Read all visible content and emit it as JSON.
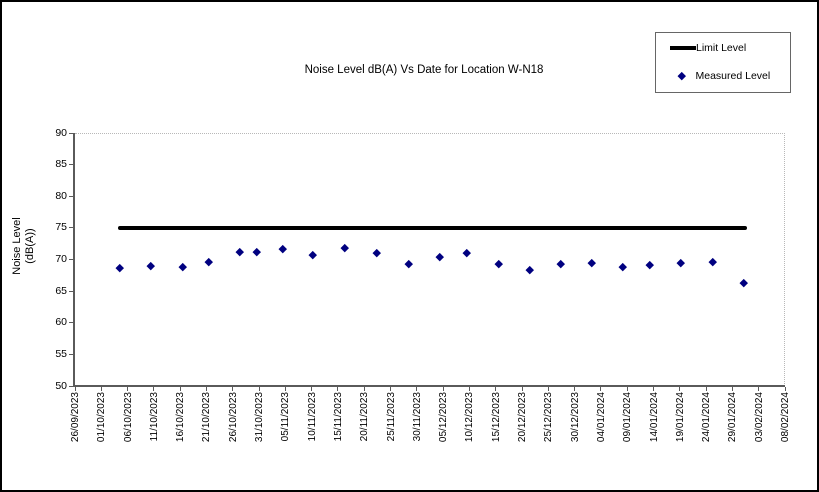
{
  "chart_data": {
    "type": "scatter",
    "title": "Noise Level dB(A) Vs Date for Location W-N18",
    "ylabel_line1": "Noise Level",
    "ylabel_line2": "(dB(A))",
    "xlabel": "",
    "ylim": [
      50,
      90
    ],
    "y_ticks": [
      90,
      85,
      80,
      75,
      70,
      65,
      60,
      55,
      50
    ],
    "grid": "off",
    "x_axis": {
      "total_days": 135,
      "tick_interval_days": 5,
      "tick_labels": [
        "26/09/2023",
        "01/10/2023",
        "06/10/2023",
        "11/10/2023",
        "16/10/2023",
        "21/10/2023",
        "26/10/2023",
        "31/10/2023",
        "05/11/2023",
        "10/11/2023",
        "15/11/2023",
        "20/11/2023",
        "25/11/2023",
        "30/11/2023",
        "05/12/2023",
        "10/12/2023",
        "15/12/2023",
        "20/12/2023",
        "25/12/2023",
        "30/12/2023",
        "04/01/2024",
        "09/01/2024",
        "14/01/2024",
        "19/01/2024",
        "24/01/2024",
        "29/01/2024",
        "03/02/2024",
        "08/02/2024"
      ]
    },
    "legend": {
      "position": "top-right",
      "entries": [
        {
          "label": "Limit Level",
          "marker": "line",
          "color": "#000000"
        },
        {
          "label": "Measured Level",
          "marker": "diamond",
          "color": "#000080"
        }
      ]
    },
    "series": [
      {
        "name": "Limit Level",
        "type": "line",
        "color": "#000000",
        "value": 75,
        "start_day": 8.2,
        "end_day": 127.8
      },
      {
        "name": "Measured Level",
        "type": "scatter",
        "color": "#000080",
        "points": [
          {
            "day": 8.5,
            "date": "04/10/2023",
            "value": 68.7
          },
          {
            "day": 14.4,
            "date": "10/10/2023",
            "value": 69.0
          },
          {
            "day": 20.5,
            "date": "16/10/2023",
            "value": 68.9
          },
          {
            "day": 25.5,
            "date": "21/10/2023",
            "value": 69.6
          },
          {
            "day": 31.4,
            "date": "27/10/2023",
            "value": 71.3
          },
          {
            "day": 34.5,
            "date": "30/10/2023",
            "value": 71.2
          },
          {
            "day": 39.5,
            "date": "04/11/2023",
            "value": 71.7
          },
          {
            "day": 45.3,
            "date": "10/11/2023",
            "value": 70.8
          },
          {
            "day": 51.3,
            "date": "16/11/2023",
            "value": 71.8
          },
          {
            "day": 57.4,
            "date": "22/11/2023",
            "value": 71.0
          },
          {
            "day": 63.4,
            "date": "28/11/2023",
            "value": 69.4
          },
          {
            "day": 69.3,
            "date": "04/12/2023",
            "value": 70.4
          },
          {
            "day": 74.4,
            "date": "09/12/2023",
            "value": 71.0
          },
          {
            "day": 80.6,
            "date": "15/12/2023",
            "value": 69.4
          },
          {
            "day": 86.5,
            "date": "21/12/2023",
            "value": 68.4
          },
          {
            "day": 92.3,
            "date": "27/12/2023",
            "value": 69.4
          },
          {
            "day": 98.3,
            "date": "02/01/2024",
            "value": 69.5
          },
          {
            "day": 104.2,
            "date": "08/01/2024",
            "value": 68.9
          },
          {
            "day": 109.3,
            "date": "13/01/2024",
            "value": 69.2
          },
          {
            "day": 115.2,
            "date": "19/01/2024",
            "value": 69.5
          },
          {
            "day": 121.3,
            "date": "25/01/2024",
            "value": 69.7
          },
          {
            "day": 127.2,
            "date": "31/01/2024",
            "value": 66.3
          }
        ]
      }
    ]
  }
}
